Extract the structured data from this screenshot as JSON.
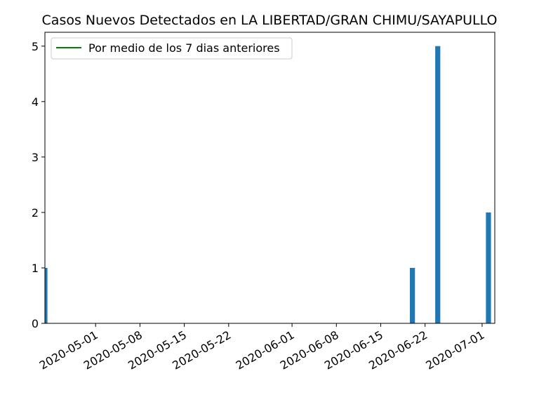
{
  "chart_data": {
    "type": "bar",
    "title": "Casos Nuevos Detectados en LA LIBERTAD/GRAN CHIMU/SAYAPULLO",
    "xlabel": "",
    "ylabel": "",
    "x_tick_labels": [
      "2020-05-01",
      "2020-05-08",
      "2020-05-15",
      "2020-05-22",
      "2020-06-01",
      "2020-06-08",
      "2020-06-15",
      "2020-06-22",
      "2020-07-01"
    ],
    "y_tick_labels": [
      "0",
      "1",
      "2",
      "3",
      "4",
      "5"
    ],
    "xlim": [
      "2020-04-23",
      "2020-07-03"
    ],
    "ylim": [
      0,
      5.25
    ],
    "grid": false,
    "legend": {
      "position": "top-left"
    },
    "colors": {
      "bars": "#1f77b4",
      "rolling_mean": "#008000"
    },
    "series": [
      {
        "values": [
          {
            "x": "2020-04-23",
            "y": 1
          },
          {
            "x": "2020-06-20",
            "y": 1
          },
          {
            "x": "2020-06-24",
            "y": 5
          },
          {
            "x": "2020-07-02",
            "y": 2
          }
        ]
      },
      {
        "name": "Por medio de los 7 dias anteriores",
        "values": []
      }
    ]
  }
}
